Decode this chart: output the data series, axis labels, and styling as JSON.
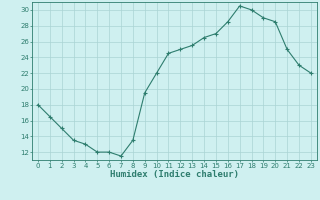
{
  "x": [
    0,
    1,
    2,
    3,
    4,
    5,
    6,
    7,
    8,
    9,
    10,
    11,
    12,
    13,
    14,
    15,
    16,
    17,
    18,
    19,
    20,
    21,
    22,
    23
  ],
  "y": [
    18,
    16.5,
    15,
    13.5,
    13,
    12,
    12,
    11.5,
    13.5,
    19.5,
    22,
    24.5,
    25,
    25.5,
    26.5,
    27,
    28.5,
    30.5,
    30,
    29,
    28.5,
    25,
    23,
    22
  ],
  "line_color": "#2e7d6e",
  "marker": "+",
  "bg_color": "#cff0f0",
  "grid_color": "#aad4d4",
  "xlabel": "Humidex (Indice chaleur)",
  "xlim": [
    -0.5,
    23.5
  ],
  "ylim": [
    11,
    31
  ],
  "yticks": [
    12,
    14,
    16,
    18,
    20,
    22,
    24,
    26,
    28,
    30
  ],
  "xticks": [
    0,
    1,
    2,
    3,
    4,
    5,
    6,
    7,
    8,
    9,
    10,
    11,
    12,
    13,
    14,
    15,
    16,
    17,
    18,
    19,
    20,
    21,
    22,
    23
  ],
  "axis_color": "#2e7d6e",
  "tick_color": "#2e7d6e",
  "label_color": "#2e7d6e",
  "xlabel_fontsize": 6.5,
  "tick_fontsize": 5.0
}
